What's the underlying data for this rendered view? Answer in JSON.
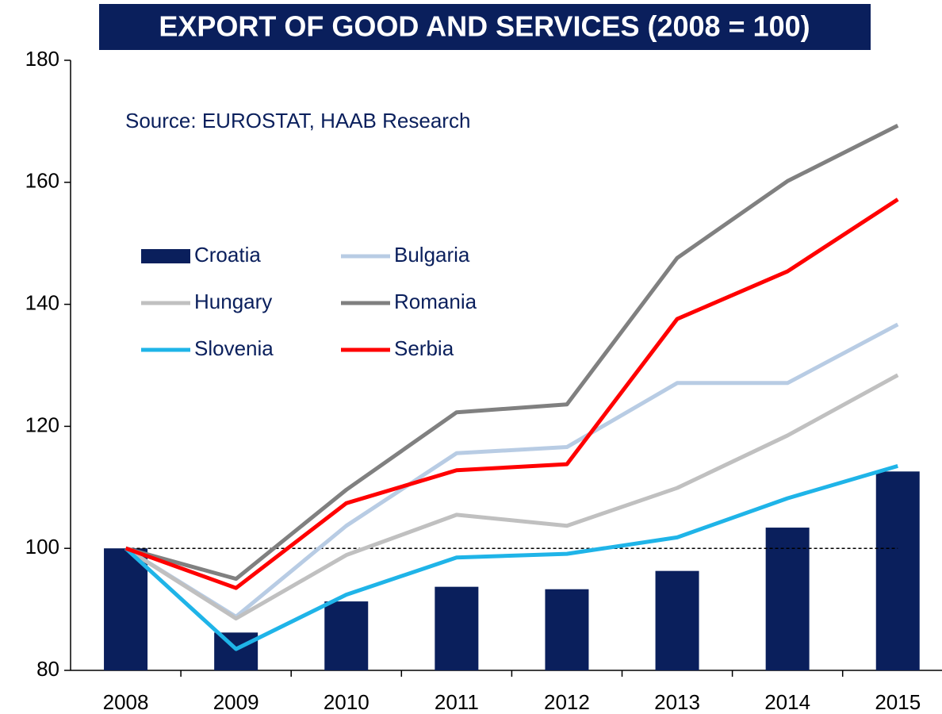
{
  "chart_data": {
    "type": "combo",
    "title": "EXPORT OF GOOD AND SERVICES  (2008 = 100)",
    "annotation": "Source: EUROSTAT,  HAAB Research",
    "categories": [
      "2008",
      "2009",
      "2010",
      "2011",
      "2012",
      "2013",
      "2014",
      "2015"
    ],
    "series": [
      {
        "name": "Croatia",
        "type": "bar",
        "color": "#0a1f5c",
        "values": [
          100,
          86.2,
          91.3,
          93.7,
          93.3,
          96.3,
          103.4,
          112.6
        ]
      },
      {
        "name": "Bulgaria",
        "type": "line",
        "color": "#b8cce4",
        "values": [
          100,
          88.8,
          103.7,
          115.6,
          116.6,
          127.1,
          127.1,
          136.7
        ]
      },
      {
        "name": "Hungary",
        "type": "line",
        "color": "#c0c0c0",
        "values": [
          100,
          88.5,
          98.9,
          105.5,
          103.7,
          109.9,
          118.5,
          128.4
        ]
      },
      {
        "name": "Romania",
        "type": "line",
        "color": "#808080",
        "values": [
          100,
          95.0,
          109.6,
          122.3,
          123.6,
          147.6,
          160.2,
          169.3
        ]
      },
      {
        "name": "Slovenia",
        "type": "line",
        "color": "#1fb4e8",
        "values": [
          100,
          83.5,
          92.4,
          98.5,
          99.1,
          101.8,
          108.2,
          113.5
        ]
      },
      {
        "name": "Serbia",
        "type": "line",
        "color": "#ff0000",
        "values": [
          100,
          93.5,
          107.4,
          112.8,
          113.8,
          137.6,
          145.4,
          157.2
        ]
      }
    ],
    "reference_line": 100,
    "ylim": [
      80,
      180
    ],
    "yticks": [
      80,
      100,
      120,
      140,
      160,
      180
    ]
  }
}
